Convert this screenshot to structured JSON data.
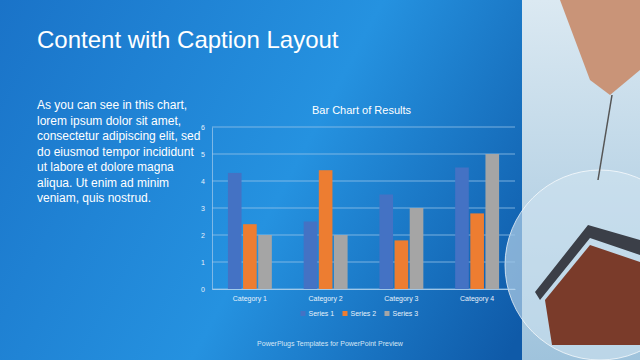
{
  "slide": {
    "title": "Content with Caption Layout",
    "caption": "As you can see in this chart, lorem ipsum dolor sit amet, consectetur adipiscing elit, sed do eiusmod tempor incididunt ut labore et dolore magna aliqua. Ut enim ad minim veniam, quis nostrud.",
    "footer": "PowerPlugs Templates for PowerPoint Preview"
  },
  "chart_data": {
    "type": "bar",
    "title": "Bar Chart of Results",
    "categories": [
      "Category 1",
      "Category 2",
      "Category 3",
      "Category 4"
    ],
    "series": [
      {
        "name": "Series 1",
        "color": "#4472c4",
        "values": [
          4.3,
          2.5,
          3.5,
          4.5
        ]
      },
      {
        "name": "Series 2",
        "color": "#ed7d31",
        "values": [
          2.4,
          4.4,
          1.8,
          2.8
        ]
      },
      {
        "name": "Series 3",
        "color": "#a5a5a5",
        "values": [
          2.0,
          2.0,
          3.0,
          5.0
        ]
      }
    ],
    "ylim": [
      0,
      6
    ],
    "yticks": [
      0,
      1,
      2,
      3,
      4,
      5,
      6
    ],
    "grid": true,
    "legend": "bottom"
  }
}
